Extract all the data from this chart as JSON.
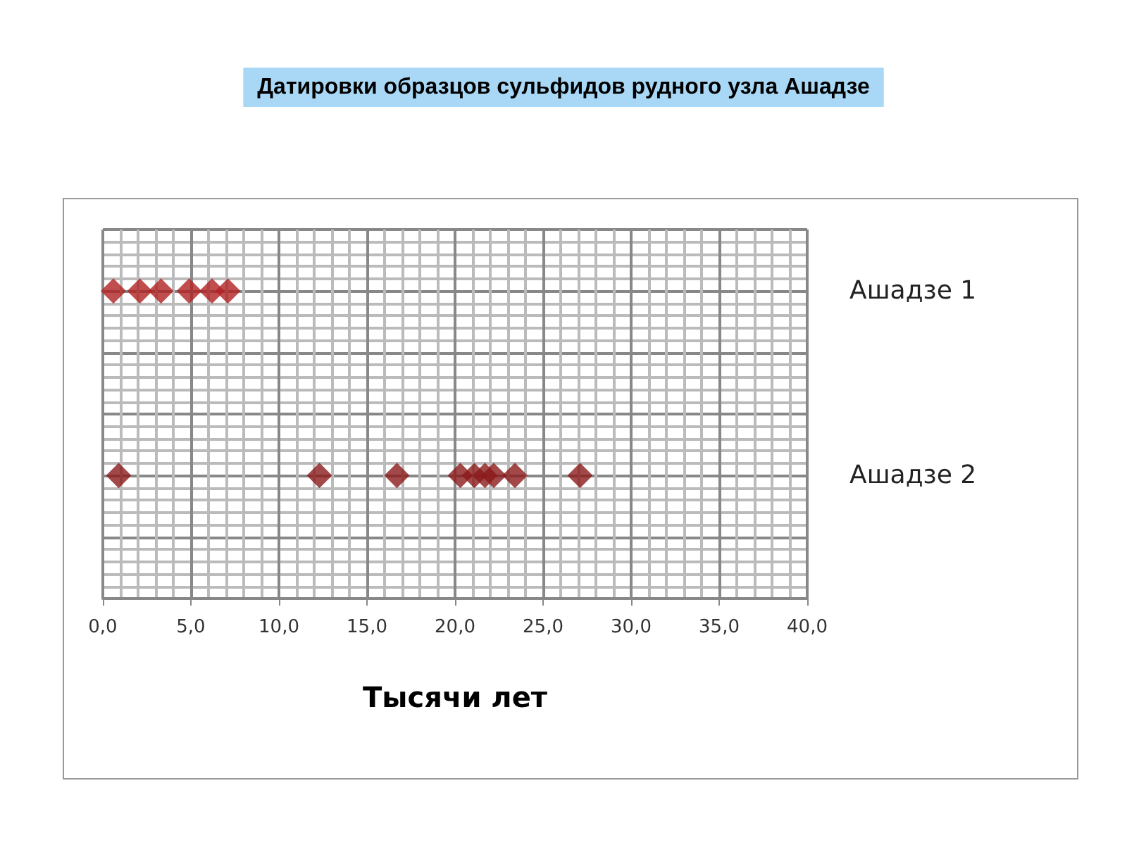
{
  "chart_data": {
    "type": "scatter",
    "orientation": "horizontal",
    "title": "Датировки образцов сульфидов рудного узла Ашадзе",
    "xlabel": "Тысячи лет",
    "categories": [
      null,
      "Ашадзе 1",
      null,
      null,
      "Ашадзе 2",
      null,
      null
    ],
    "series": [
      {
        "color": "#b22222",
        "x": [
          "Ашадзе 1",
          "Ашадзе 1",
          "Ашадзе 1",
          "Ашадзе 1",
          "Ашадзе 1",
          "Ашадзе 1"
        ],
        "values": [
          0.6,
          2.1,
          3.3,
          4.9,
          6.2,
          7.1
        ]
      },
      {
        "color": "#8b1a1a",
        "x": [
          "Ашадзе 2",
          "Ашадзе 2",
          "Ашадзе 2",
          "Ашадзе 2",
          "Ашадзе 2",
          "Ашадзе 2",
          "Ашадзе 2",
          "Ашадзе 2",
          "Ашадзе 2"
        ],
        "values": [
          0.9,
          12.3,
          16.7,
          20.3,
          21.1,
          21.7,
          22.2,
          23.4,
          27.1
        ]
      }
    ],
    "xlim": [
      0,
      40
    ],
    "xticks": [
      {
        "value": 0,
        "label": "0,0"
      },
      {
        "value": 5,
        "label": "5,0"
      },
      {
        "value": 10,
        "label": "10,0"
      },
      {
        "value": 15,
        "label": "15,0"
      },
      {
        "value": 20,
        "label": "20,0"
      },
      {
        "value": 25,
        "label": "25,0"
      },
      {
        "value": 30,
        "label": "30,0"
      },
      {
        "value": 35,
        "label": "35,0"
      },
      {
        "value": 40,
        "label": "40,0"
      }
    ],
    "grid": true,
    "marker": "diamond"
  }
}
